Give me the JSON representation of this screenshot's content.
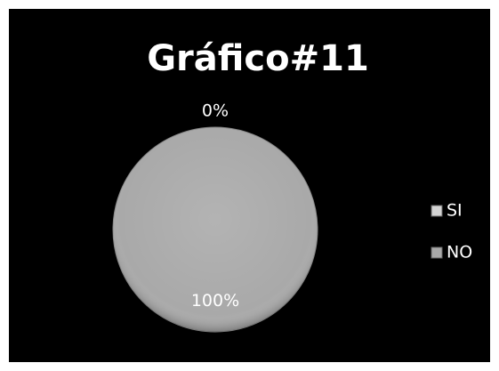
{
  "chart_data": {
    "type": "pie",
    "title": "Gráfico#11",
    "categories": [
      "SI",
      "NO"
    ],
    "values": [
      0,
      100
    ],
    "value_labels": [
      "0%",
      "100%"
    ],
    "colors": [
      "#d4d4d4",
      "#a9a9a9"
    ],
    "legend": "right"
  }
}
